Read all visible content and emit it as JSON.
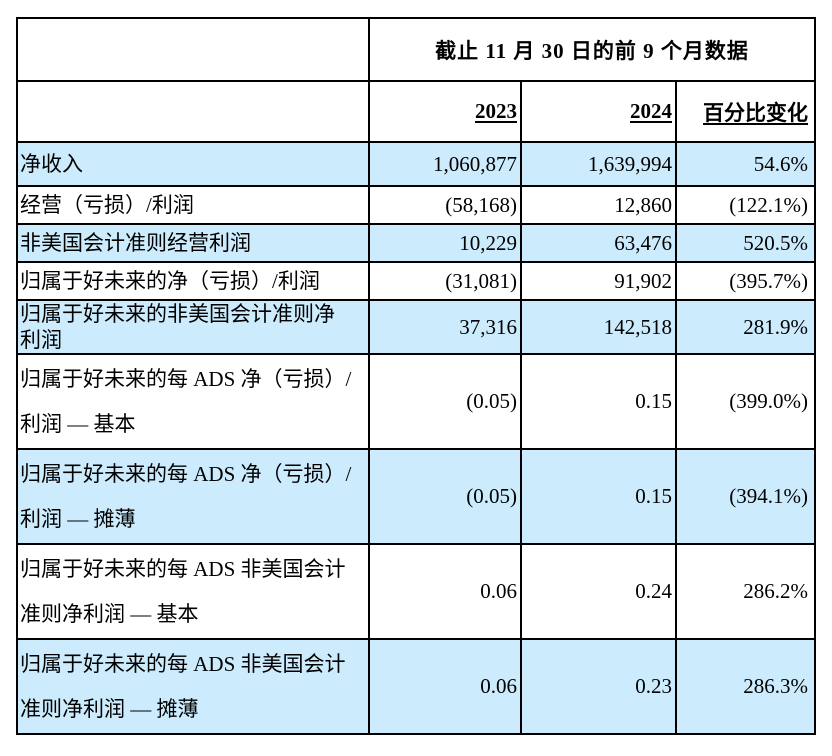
{
  "page": {
    "background_color": "#ffffff",
    "highlight_color": "#ccebfc",
    "border_color": "#000000"
  },
  "table": {
    "period_header": "截止 11 月 30 日的前 9 个月数据",
    "columns": {
      "y2023": "2023",
      "y2024": "2024",
      "pct_change": "百分比变化"
    },
    "rows": [
      {
        "label": "净收入",
        "y2023": "1,060,877",
        "y2024": "1,639,994",
        "pct": "54.6%",
        "highlighted": true
      },
      {
        "label": "经营（亏损）/利润",
        "y2023": "(58,168)",
        "y2024": "12,860",
        "pct": "(122.1%)",
        "highlighted": false
      },
      {
        "label": "非美国会计准则经营利润",
        "y2023": "10,229",
        "y2024": "63,476",
        "pct": "520.5%",
        "highlighted": true
      },
      {
        "label": "归属于好未来的净（亏损）/利润",
        "y2023": "(31,081)",
        "y2024": "91,902",
        "pct": "(395.7%)",
        "highlighted": false
      },
      {
        "label": "归属于好未来的非美国会计准则净\n利润",
        "y2023": "37,316",
        "y2024": "142,518",
        "pct": "281.9%",
        "highlighted": true
      },
      {
        "label": "归属于好未来的每 ADS 净（亏损）/\n利润 — 基本",
        "y2023": "(0.05)",
        "y2024": "0.15",
        "pct": "(399.0%)",
        "highlighted": false
      },
      {
        "label": "归属于好未来的每 ADS 净（亏损）/\n利润 — 摊薄",
        "y2023": "(0.05)",
        "y2024": "0.15",
        "pct": "(394.1%)",
        "highlighted": true
      },
      {
        "label": "归属于好未来的每 ADS 非美国会计\n准则净利润 — 基本",
        "y2023": "0.06",
        "y2024": "0.24",
        "pct": "286.2%",
        "highlighted": false
      },
      {
        "label": "归属于好未来的每 ADS 非美国会计\n准则净利润 — 摊薄",
        "y2023": "0.06",
        "y2024": "0.23",
        "pct": "286.3%",
        "highlighted": true
      }
    ]
  }
}
